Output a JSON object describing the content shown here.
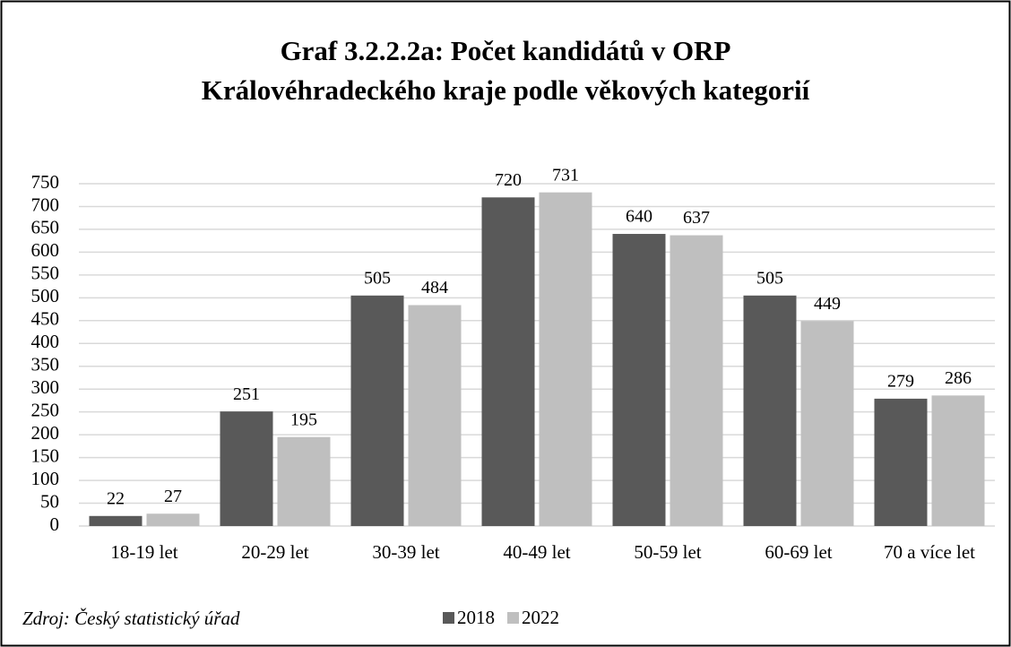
{
  "chart_data": {
    "type": "bar",
    "title": [
      "Graf 3.2.2.2a: Počet kandidátů v ORP",
      "Královéhradeckého kraje podle věkových kategorií"
    ],
    "categories": [
      "18-19 let",
      "20-29 let",
      "30-39 let",
      "40-49 let",
      "50-59 let",
      "60-69 let",
      "70 a více let"
    ],
    "series": [
      {
        "name": "2018",
        "color": "#595959",
        "values": [
          22,
          251,
          505,
          720,
          640,
          505,
          279
        ]
      },
      {
        "name": "2022",
        "color": "#bfbfbf",
        "values": [
          27,
          195,
          484,
          731,
          637,
          449,
          286
        ]
      }
    ],
    "ylim": [
      0,
      750
    ],
    "yticks": [
      0,
      50,
      100,
      150,
      200,
      250,
      300,
      350,
      400,
      450,
      500,
      550,
      600,
      650,
      700,
      750
    ],
    "grid": true,
    "legend": "bottom",
    "source": "Zdroj: Český statistický úřad"
  }
}
